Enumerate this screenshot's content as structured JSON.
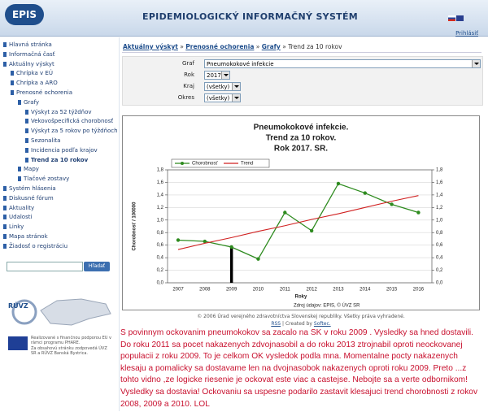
{
  "header": {
    "logo": "EPIS",
    "title": "EPIDEMIOLOGICKÝ INFORMAČNÝ SYSTÉM",
    "login": "Prihlásiť"
  },
  "menu": [
    {
      "label": "Hlavná stránka"
    },
    {
      "label": "Informačná časť"
    },
    {
      "label": "Aktuálny výskyt",
      "children": [
        {
          "label": "Chrípka v EÚ"
        },
        {
          "label": "Chrípka a ARO"
        },
        {
          "label": "Prenosné ochorenia",
          "children": [
            {
              "label": "Grafy",
              "children": [
                {
                  "label": "Výskyt za 52 týždňov"
                },
                {
                  "label": "Vekovošpecifická chorobnosť"
                },
                {
                  "label": "Výskyt za 5 rokov po týždňoch"
                },
                {
                  "label": "Sezonalita"
                },
                {
                  "label": "Incidencia podľa krajov"
                },
                {
                  "label": "Trend za 10 rokov"
                }
              ]
            },
            {
              "label": "Mapy"
            },
            {
              "label": "Tlačové zostavy"
            }
          ]
        }
      ]
    },
    {
      "label": "Systém hlásenia"
    },
    {
      "label": "Diskusné fórum"
    },
    {
      "label": "Aktuality"
    },
    {
      "label": "Udalosti"
    },
    {
      "label": "Linky"
    },
    {
      "label": "Mapa stránok"
    },
    {
      "label": "Žiadosť o registráciu"
    }
  ],
  "search": {
    "button": "Hľadať"
  },
  "sidebar_footer": {
    "logo": "RÚVZ",
    "phare": "Realizované s finančnou podporou EU v rámci programu PHARE.",
    "responsibility": "Za obsahovú stránku zodpovedá ÚVZ SR a RÚVZ Banská Bystrica."
  },
  "breadcrumb": [
    "Aktuálny výskyt",
    "Prenosné ochorenia",
    "Grafy",
    "Trend za 10 rokov"
  ],
  "form": [
    {
      "label": "Graf",
      "value": "Pneumokokové infekcie"
    },
    {
      "label": "Rok",
      "value": "2017"
    },
    {
      "label": "Kraj",
      "value": "(všetky)"
    },
    {
      "label": "Okres",
      "value": "(všetky)"
    }
  ],
  "chart_data": {
    "type": "line",
    "title": [
      "Pneumokokové infekcie.",
      "Trend za 10 rokov.",
      "Rok 2017. SR."
    ],
    "x_label": "Roky",
    "y_label": "Chorobnosť / 100000",
    "source": "Zdroj údajov: EPIS, © ÚVZ SR",
    "categories": [
      "2007",
      "2008",
      "2009",
      "2010",
      "2011",
      "2012",
      "2013",
      "2014",
      "2015",
      "2016"
    ],
    "series": [
      {
        "name": "Chorobnosť",
        "color": "#2e8b1f",
        "values": [
          0.68,
          0.66,
          0.57,
          0.38,
          1.12,
          0.83,
          1.58,
          1.43,
          1.25,
          1.12
        ]
      },
      {
        "name": "Trend",
        "color": "#d02020",
        "values": [
          0.53,
          0.63,
          0.72,
          0.82,
          0.91,
          1.01,
          1.1,
          1.2,
          1.3,
          1.39
        ]
      }
    ],
    "ylim": [
      0,
      1.8
    ],
    "yticks": [
      {
        "value": 0,
        "label": "0,0"
      },
      {
        "value": 0.2,
        "label": "0,2"
      },
      {
        "value": 0.4,
        "label": "0,4"
      },
      {
        "value": 0.6,
        "label": "0,6"
      },
      {
        "value": 0.8,
        "label": "0,8"
      },
      {
        "value": 1,
        "label": "1,0"
      },
      {
        "value": 1.2,
        "label": "1,2"
      },
      {
        "value": 1.4,
        "label": "1,4"
      },
      {
        "value": 1.6,
        "label": "1,6"
      },
      {
        "value": 1.8,
        "label": "1,8"
      }
    ],
    "y2lim": [
      0,
      1.8
    ],
    "y2ticks": [
      {
        "value": 0,
        "label": "0,0"
      },
      {
        "value": 0.2,
        "label": "0,2"
      },
      {
        "value": 0.4,
        "label": "0,4"
      },
      {
        "value": 0.6,
        "label": "0,6"
      },
      {
        "value": 0.8,
        "label": "0,8"
      },
      {
        "value": 1,
        "label": "1,0"
      },
      {
        "value": 1.2,
        "label": "1,2"
      },
      {
        "value": 1.4,
        "label": "1,4"
      },
      {
        "value": 1.6,
        "label": "1,6"
      },
      {
        "value": 1.8,
        "label": "1,8"
      }
    ],
    "grid": true,
    "legend": "top"
  },
  "footer": {
    "copyright": "© 2006 Úrad verejného zdravotníctva Slovenskej republiky. Všetky práva vyhradené.",
    "rss": "RSS",
    "created": "| Created by",
    "softec": "Softec."
  },
  "comment": "S povinnym ockovanim pneumokokov sa zacalo na SK v roku 2009 . Vysledky sa hned dostavili. Do roku 2011 sa pocet nakazenych zdvojnasobil a do roku 2013 ztrojnabil oproti neockovanej populacii z roku 2009. To je celkom OK vysledok podla mna. Momentalne pocty nakazenych klesaju a pomalicky sa dostavame len na dvojnasobok nakazenych oproti roku 2009. Preto ...z tohto vidno ,ze logicke riesenie je ockovat este viac a castejse. Nebojte sa a verte odbornikom! Vysledky sa dostavia! Ockovaniu sa uspesne podarilo zastavit klesajuci trend chorobnosti z rokov 2008, 2009 a 2010.  LOL"
}
